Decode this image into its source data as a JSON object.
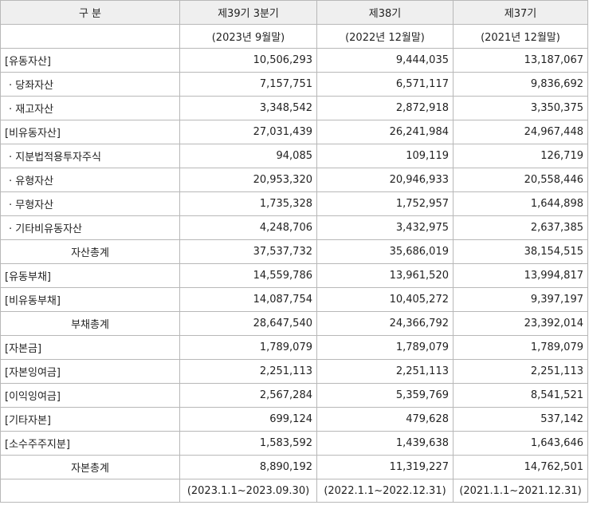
{
  "header": {
    "category": "구 분",
    "periods": [
      "제39기 3분기",
      "제38기",
      "제37기"
    ],
    "dates": [
      "(2023년 9월말)",
      "(2022년 12월말)",
      "(2021년 12월말)"
    ]
  },
  "rows": [
    {
      "label": "[유동자산]",
      "kind": "main",
      "values": [
        "10,506,293",
        "9,444,035",
        "13,187,067"
      ]
    },
    {
      "label": "· 당좌자산",
      "kind": "sub",
      "values": [
        "7,157,751",
        "6,571,117",
        "9,836,692"
      ]
    },
    {
      "label": "· 재고자산",
      "kind": "sub",
      "values": [
        "3,348,542",
        "2,872,918",
        "3,350,375"
      ]
    },
    {
      "label": "[비유동자산]",
      "kind": "main",
      "values": [
        "27,031,439",
        "26,241,984",
        "24,967,448"
      ]
    },
    {
      "label": "· 지분법적용투자주식",
      "kind": "sub",
      "values": [
        "94,085",
        "109,119",
        "126,719"
      ]
    },
    {
      "label": "· 유형자산",
      "kind": "sub",
      "values": [
        "20,953,320",
        "20,946,933",
        "20,558,446"
      ]
    },
    {
      "label": "· 무형자산",
      "kind": "sub",
      "values": [
        "1,735,328",
        "1,752,957",
        "1,644,898"
      ]
    },
    {
      "label": "· 기타비유동자산",
      "kind": "sub",
      "values": [
        "4,248,706",
        "3,432,975",
        "2,637,385"
      ]
    },
    {
      "label": "자산총계",
      "kind": "total",
      "values": [
        "37,537,732",
        "35,686,019",
        "38,154,515"
      ]
    },
    {
      "label": "[유동부채]",
      "kind": "main",
      "values": [
        "14,559,786",
        "13,961,520",
        "13,994,817"
      ]
    },
    {
      "label": "[비유동부채]",
      "kind": "main",
      "values": [
        "14,087,754",
        "10,405,272",
        "9,397,197"
      ]
    },
    {
      "label": "부채총계",
      "kind": "total",
      "values": [
        "28,647,540",
        "24,366,792",
        "23,392,014"
      ]
    },
    {
      "label": "[자본금]",
      "kind": "main",
      "values": [
        "1,789,079",
        "1,789,079",
        "1,789,079"
      ]
    },
    {
      "label": "[자본잉여금]",
      "kind": "main",
      "values": [
        "2,251,113",
        "2,251,113",
        "2,251,113"
      ]
    },
    {
      "label": "[이익잉여금]",
      "kind": "main",
      "values": [
        "2,567,284",
        "5,359,769",
        "8,541,521"
      ]
    },
    {
      "label": "[기타자본]",
      "kind": "main",
      "values": [
        "699,124",
        "479,628",
        "537,142"
      ]
    },
    {
      "label": "[소수주주지분]",
      "kind": "main",
      "values": [
        "1,583,592",
        "1,439,638",
        "1,643,646"
      ]
    },
    {
      "label": "자본총계",
      "kind": "total",
      "values": [
        "8,890,192",
        "11,319,227",
        "14,762,501"
      ]
    }
  ],
  "footer": {
    "label": "",
    "periods": [
      "(2023.1.1~2023.09.30)",
      "(2022.1.1~2022.12.31)",
      "(2021.1.1~2021.12.31)"
    ]
  }
}
